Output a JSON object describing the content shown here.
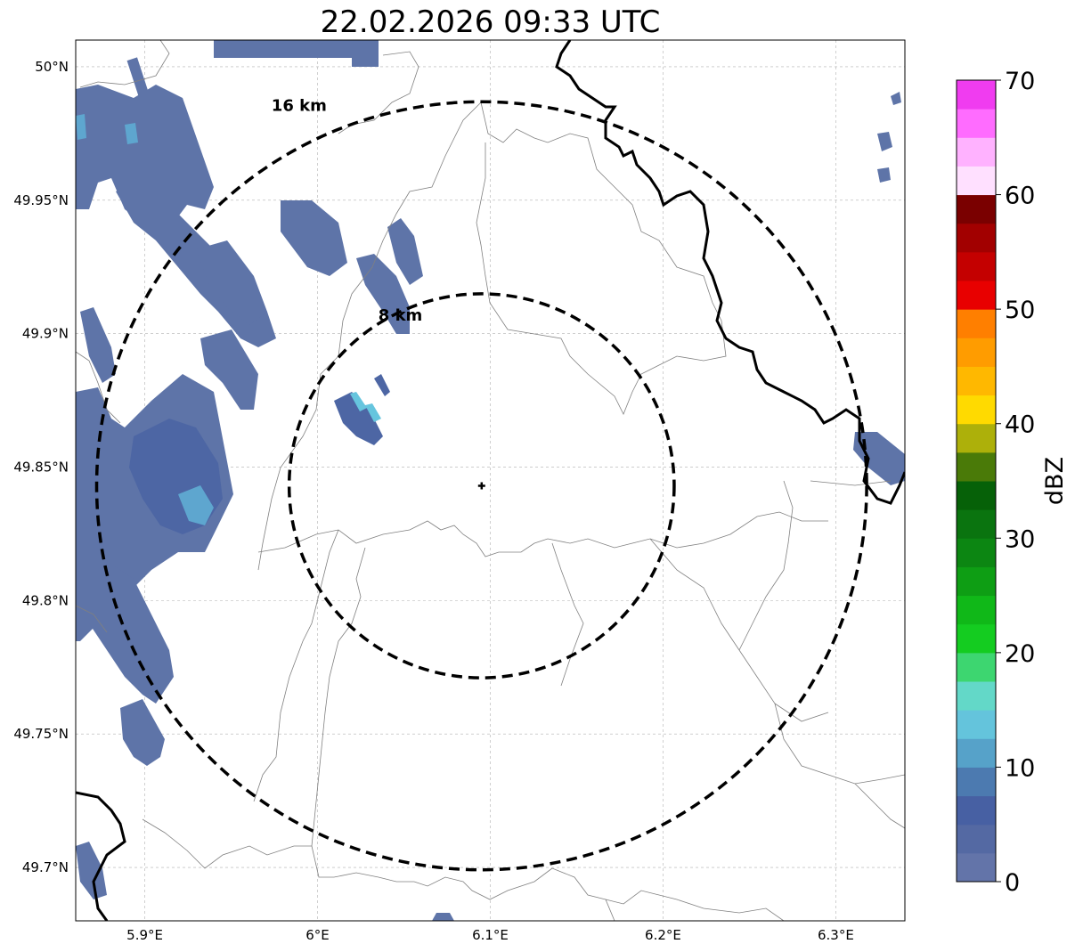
{
  "title": "22.02.2026 09:33 UTC",
  "map": {
    "lon_range": [
      5.86,
      6.34
    ],
    "lat_range": [
      49.68,
      50.01
    ],
    "lon_ticks": [
      {
        "value": 5.9,
        "label": "5.9°E"
      },
      {
        "value": 6.0,
        "label": "6°E"
      },
      {
        "value": 6.1,
        "label": "6.1°E"
      },
      {
        "value": 6.2,
        "label": "6.2°E"
      },
      {
        "value": 6.3,
        "label": "6.3°E"
      }
    ],
    "lat_ticks": [
      {
        "value": 50.0,
        "label": "50°N"
      },
      {
        "value": 49.95,
        "label": "49.95°N"
      },
      {
        "value": 49.9,
        "label": "49.9°N"
      },
      {
        "value": 49.85,
        "label": "49.85°N"
      },
      {
        "value": 49.8,
        "label": "49.8°N"
      },
      {
        "value": 49.75,
        "label": "49.75°N"
      },
      {
        "value": 49.7,
        "label": "49.7°N"
      }
    ],
    "gridlines": true,
    "radar_site": {
      "lon": 6.095,
      "lat": 49.843
    },
    "range_rings": [
      {
        "label": "8 km",
        "radius_km": 8
      },
      {
        "label": "16 km",
        "radius_km": 16
      }
    ]
  },
  "colorbar": {
    "label": "dBZ",
    "min": 0,
    "max": 70,
    "tick_labels": [
      "0",
      "10",
      "20",
      "30",
      "40",
      "50",
      "60",
      "70"
    ],
    "step": 2.5,
    "colors": [
      "#6374a9",
      "#5469a3",
      "#4760a3",
      "#4c7ab0",
      "#56a2c9",
      "#64c4dc",
      "#63d8c8",
      "#3dd670",
      "#14cc20",
      "#10b818",
      "#0e9e14",
      "#0c8612",
      "#0a740f",
      "#066108",
      "#4a7a08",
      "#adb00a",
      "#ffda00",
      "#ffb800",
      "#ff9c00",
      "#ff7f00",
      "#e80000",
      "#c40000",
      "#a20000",
      "#7a0000",
      "#ffe0ff",
      "#ffb2ff",
      "#ff6cff",
      "#f03cf0"
    ]
  },
  "precipitation": {
    "dominant_reflectivity_dbz": [
      0,
      15
    ],
    "max_reflectivity_dbz": 15
  }
}
